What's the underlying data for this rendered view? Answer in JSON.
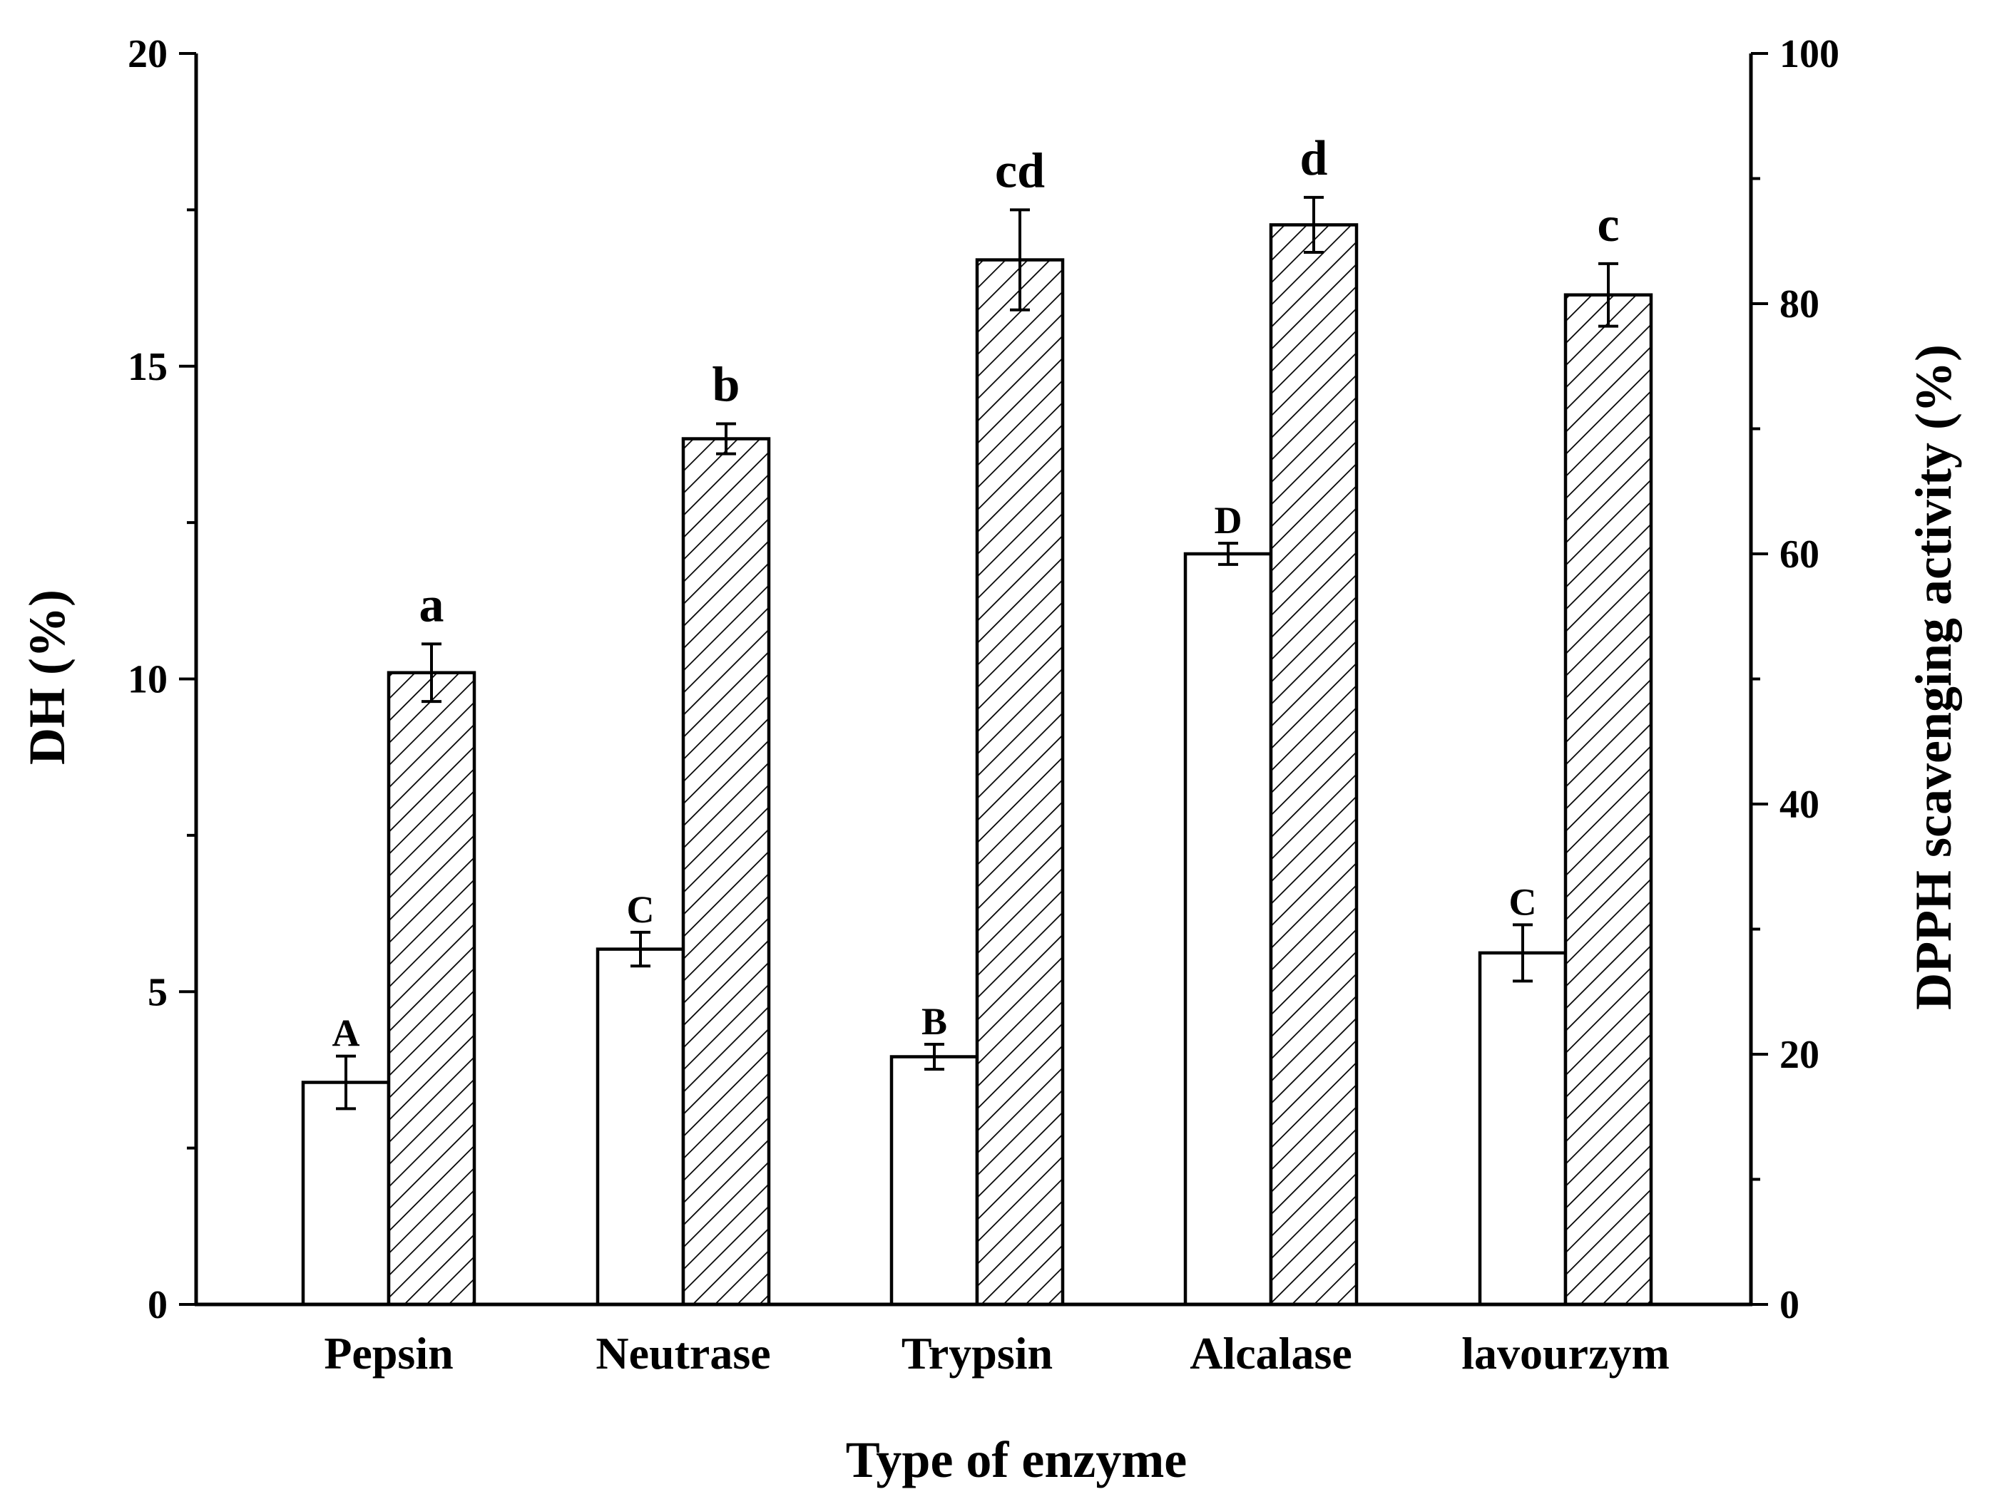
{
  "chart_data": {
    "type": "bar",
    "title": "",
    "xlabel": "Type of enzyme",
    "ylabel": "DH (%)",
    "y2label": "DPPH scavenging activity (%)",
    "categories": [
      "Pepsin",
      "Neutrase",
      "Trypsin",
      "Alcalase",
      "lavourzym"
    ],
    "ylim": [
      0,
      20
    ],
    "y2lim": [
      0,
      100
    ],
    "yticks": [
      "0",
      "5",
      "10",
      "15",
      "20"
    ],
    "y2ticks": [
      "0",
      "20",
      "40",
      "60",
      "80",
      "100"
    ],
    "series": [
      {
        "name": "DH",
        "axis": "left",
        "pattern": "open",
        "values": [
          3.55,
          5.68,
          3.96,
          12.0,
          5.62
        ],
        "errors": [
          0.42,
          0.27,
          0.2,
          0.17,
          0.45
        ],
        "labels": [
          "A",
          "C",
          "B",
          "D",
          "C"
        ]
      },
      {
        "name": "DPPH scavenging activity",
        "axis": "right",
        "pattern": "hatched",
        "values": [
          50.5,
          69.2,
          83.5,
          86.3,
          80.7
        ],
        "errors": [
          2.3,
          1.2,
          4.0,
          2.2,
          2.5
        ],
        "labels": [
          "a",
          "b",
          "cd",
          "d",
          "c"
        ]
      }
    ]
  }
}
